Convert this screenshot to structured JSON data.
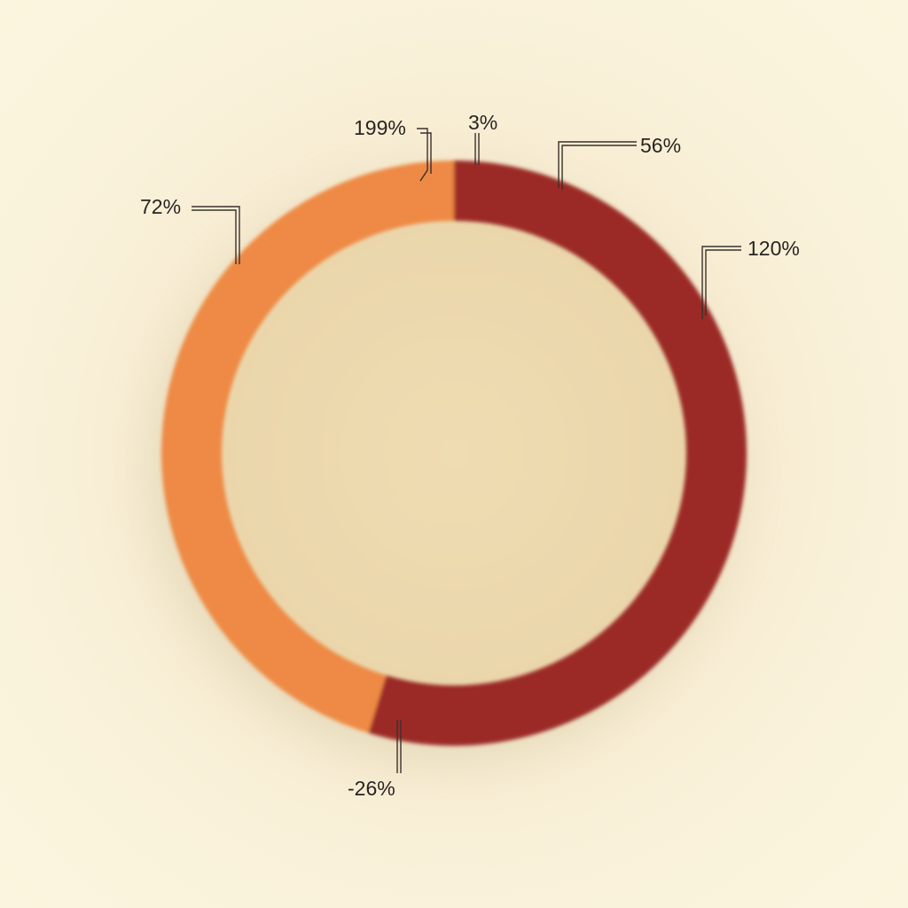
{
  "chart_data": {
    "type": "pie",
    "variant": "donut",
    "title": "",
    "slices": [
      {
        "value_label": "56%",
        "color": "#9b2c28"
      },
      {
        "value_label": "120%",
        "color": "#9b2c28"
      },
      {
        "value_label": "-26%",
        "color": "#9b2c28"
      },
      {
        "value_label": "72%",
        "color": "#ee8a44"
      },
      {
        "value_label": "199%",
        "color": "#ee8a44"
      }
    ],
    "unread_label": "3%",
    "colors": {
      "dark_segment": "#9b2c28",
      "light_segment": "#ee8a44",
      "center_fill": "#efdcb2",
      "background": "#f8efd5"
    },
    "legend": "none"
  }
}
